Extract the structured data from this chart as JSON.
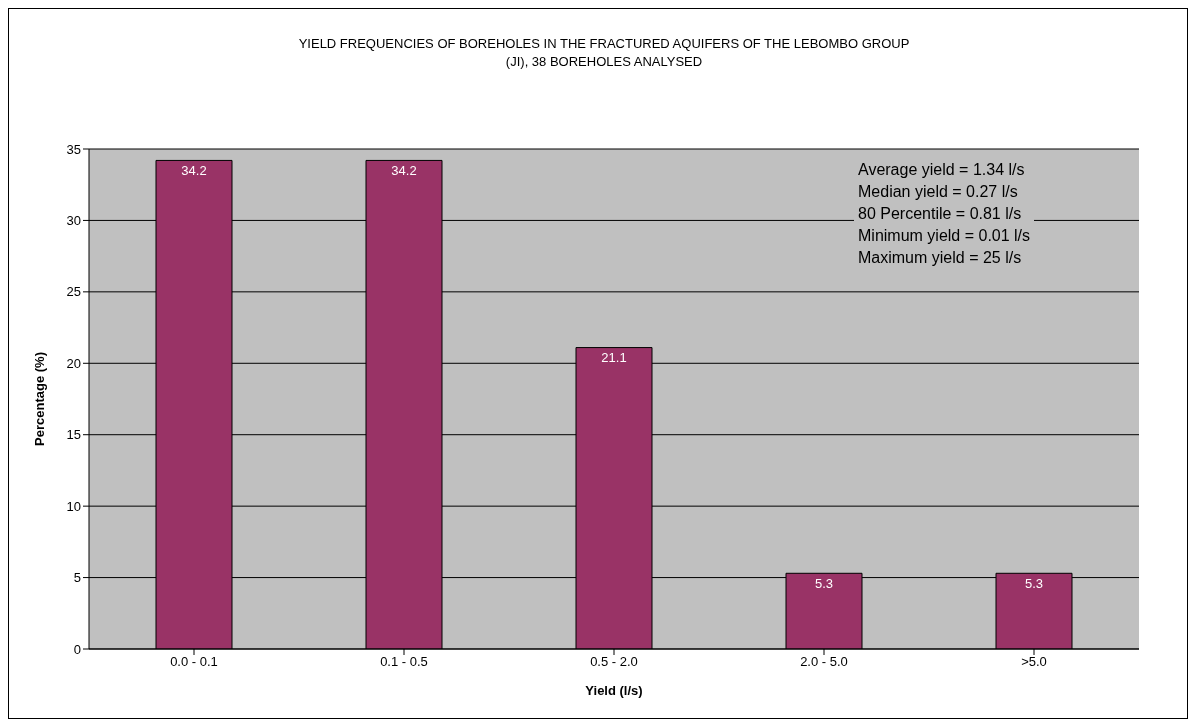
{
  "chart_data": {
    "type": "bar",
    "title": "YIELD FREQUENCIES OF BOREHOLES IN THE FRACTURED AQUIFERS OF THE LEBOMBO GROUP (JI), 38 BOREHOLES ANALYSED",
    "xlabel": "Yield (l/s)",
    "ylabel": "Percentage (%)",
    "categories": [
      "0.0 - 0.1",
      "0.1 - 0.5",
      "0.5 - 2.0",
      "2.0 - 5.0",
      ">5.0"
    ],
    "values": [
      34.2,
      34.2,
      21.1,
      5.3,
      5.3
    ],
    "color": "#993366",
    "ylim": [
      0,
      35
    ],
    "yticks": [
      0,
      5,
      10,
      15,
      20,
      25,
      30,
      35
    ],
    "grid": "y",
    "data_labels": true,
    "annotations": [
      "Average yield = 1.34 l/s",
      "Median yield = 0.27 l/s",
      "80 Percentile = 0.81 l/s",
      "Minimum yield = 0.01 l/s",
      "Maximum yield = 25 l/s"
    ]
  }
}
